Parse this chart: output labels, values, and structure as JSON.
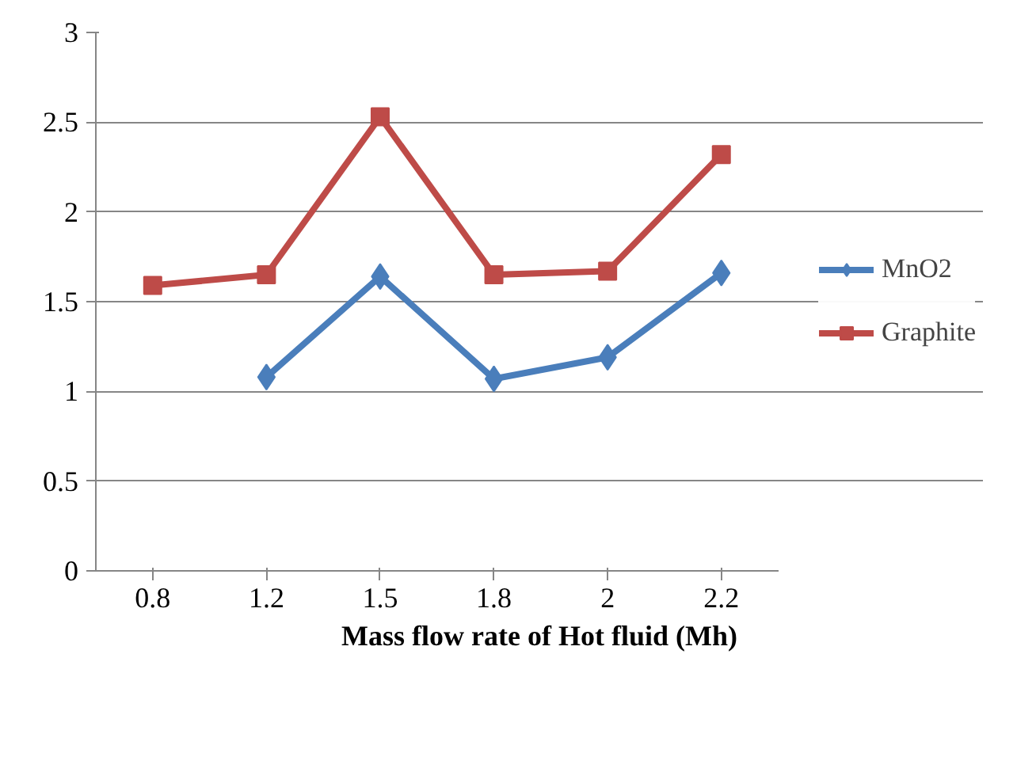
{
  "chart_data": {
    "type": "line",
    "xlabel": "Mass flow rate of Hot fluid (Mh)",
    "categories": [
      "0.8",
      "1.2",
      "1.5",
      "1.8",
      "2",
      "2.2"
    ],
    "series": [
      {
        "name": "MnO2",
        "color": "#4a7ebb",
        "marker": "diamond",
        "values": [
          null,
          1.08,
          1.64,
          1.07,
          1.19,
          1.66
        ]
      },
      {
        "name": "Graphite",
        "color": "#be4b48",
        "marker": "square",
        "values": [
          1.59,
          1.65,
          2.53,
          1.65,
          1.67,
          2.32
        ]
      }
    ],
    "ylim": [
      0,
      3
    ],
    "yticks": [
      0,
      0.5,
      1,
      1.5,
      2,
      2.5,
      3
    ],
    "grid": "y",
    "legend": "right"
  }
}
